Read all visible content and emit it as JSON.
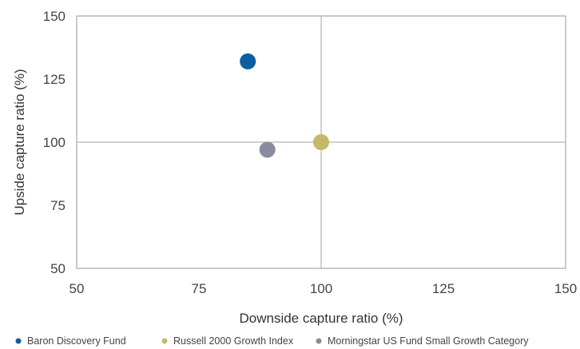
{
  "chart_data": {
    "type": "scatter",
    "xlabel": "Downside capture ratio  (%)",
    "ylabel": "Upside capture ratio  (%)",
    "xlim": [
      50,
      150
    ],
    "ylim": [
      50,
      150
    ],
    "xticks": [
      50,
      75,
      100,
      125,
      150
    ],
    "yticks": [
      50,
      75,
      100,
      125,
      150
    ],
    "reference_lines": {
      "x": 100,
      "y": 100
    },
    "grid": false,
    "legend_position": "bottom",
    "series": [
      {
        "name": "Baron Discovery Fund",
        "color": "#0b5fa0",
        "x": [
          85
        ],
        "y": [
          132
        ]
      },
      {
        "name": "Russell 2000 Growth Index",
        "color": "#c4b96a",
        "x": [
          100
        ],
        "y": [
          100
        ]
      },
      {
        "name": "Morningstar US Fund Small Growth Category",
        "color": "#8a8aa2",
        "x": [
          89
        ],
        "y": [
          97
        ]
      }
    ]
  }
}
